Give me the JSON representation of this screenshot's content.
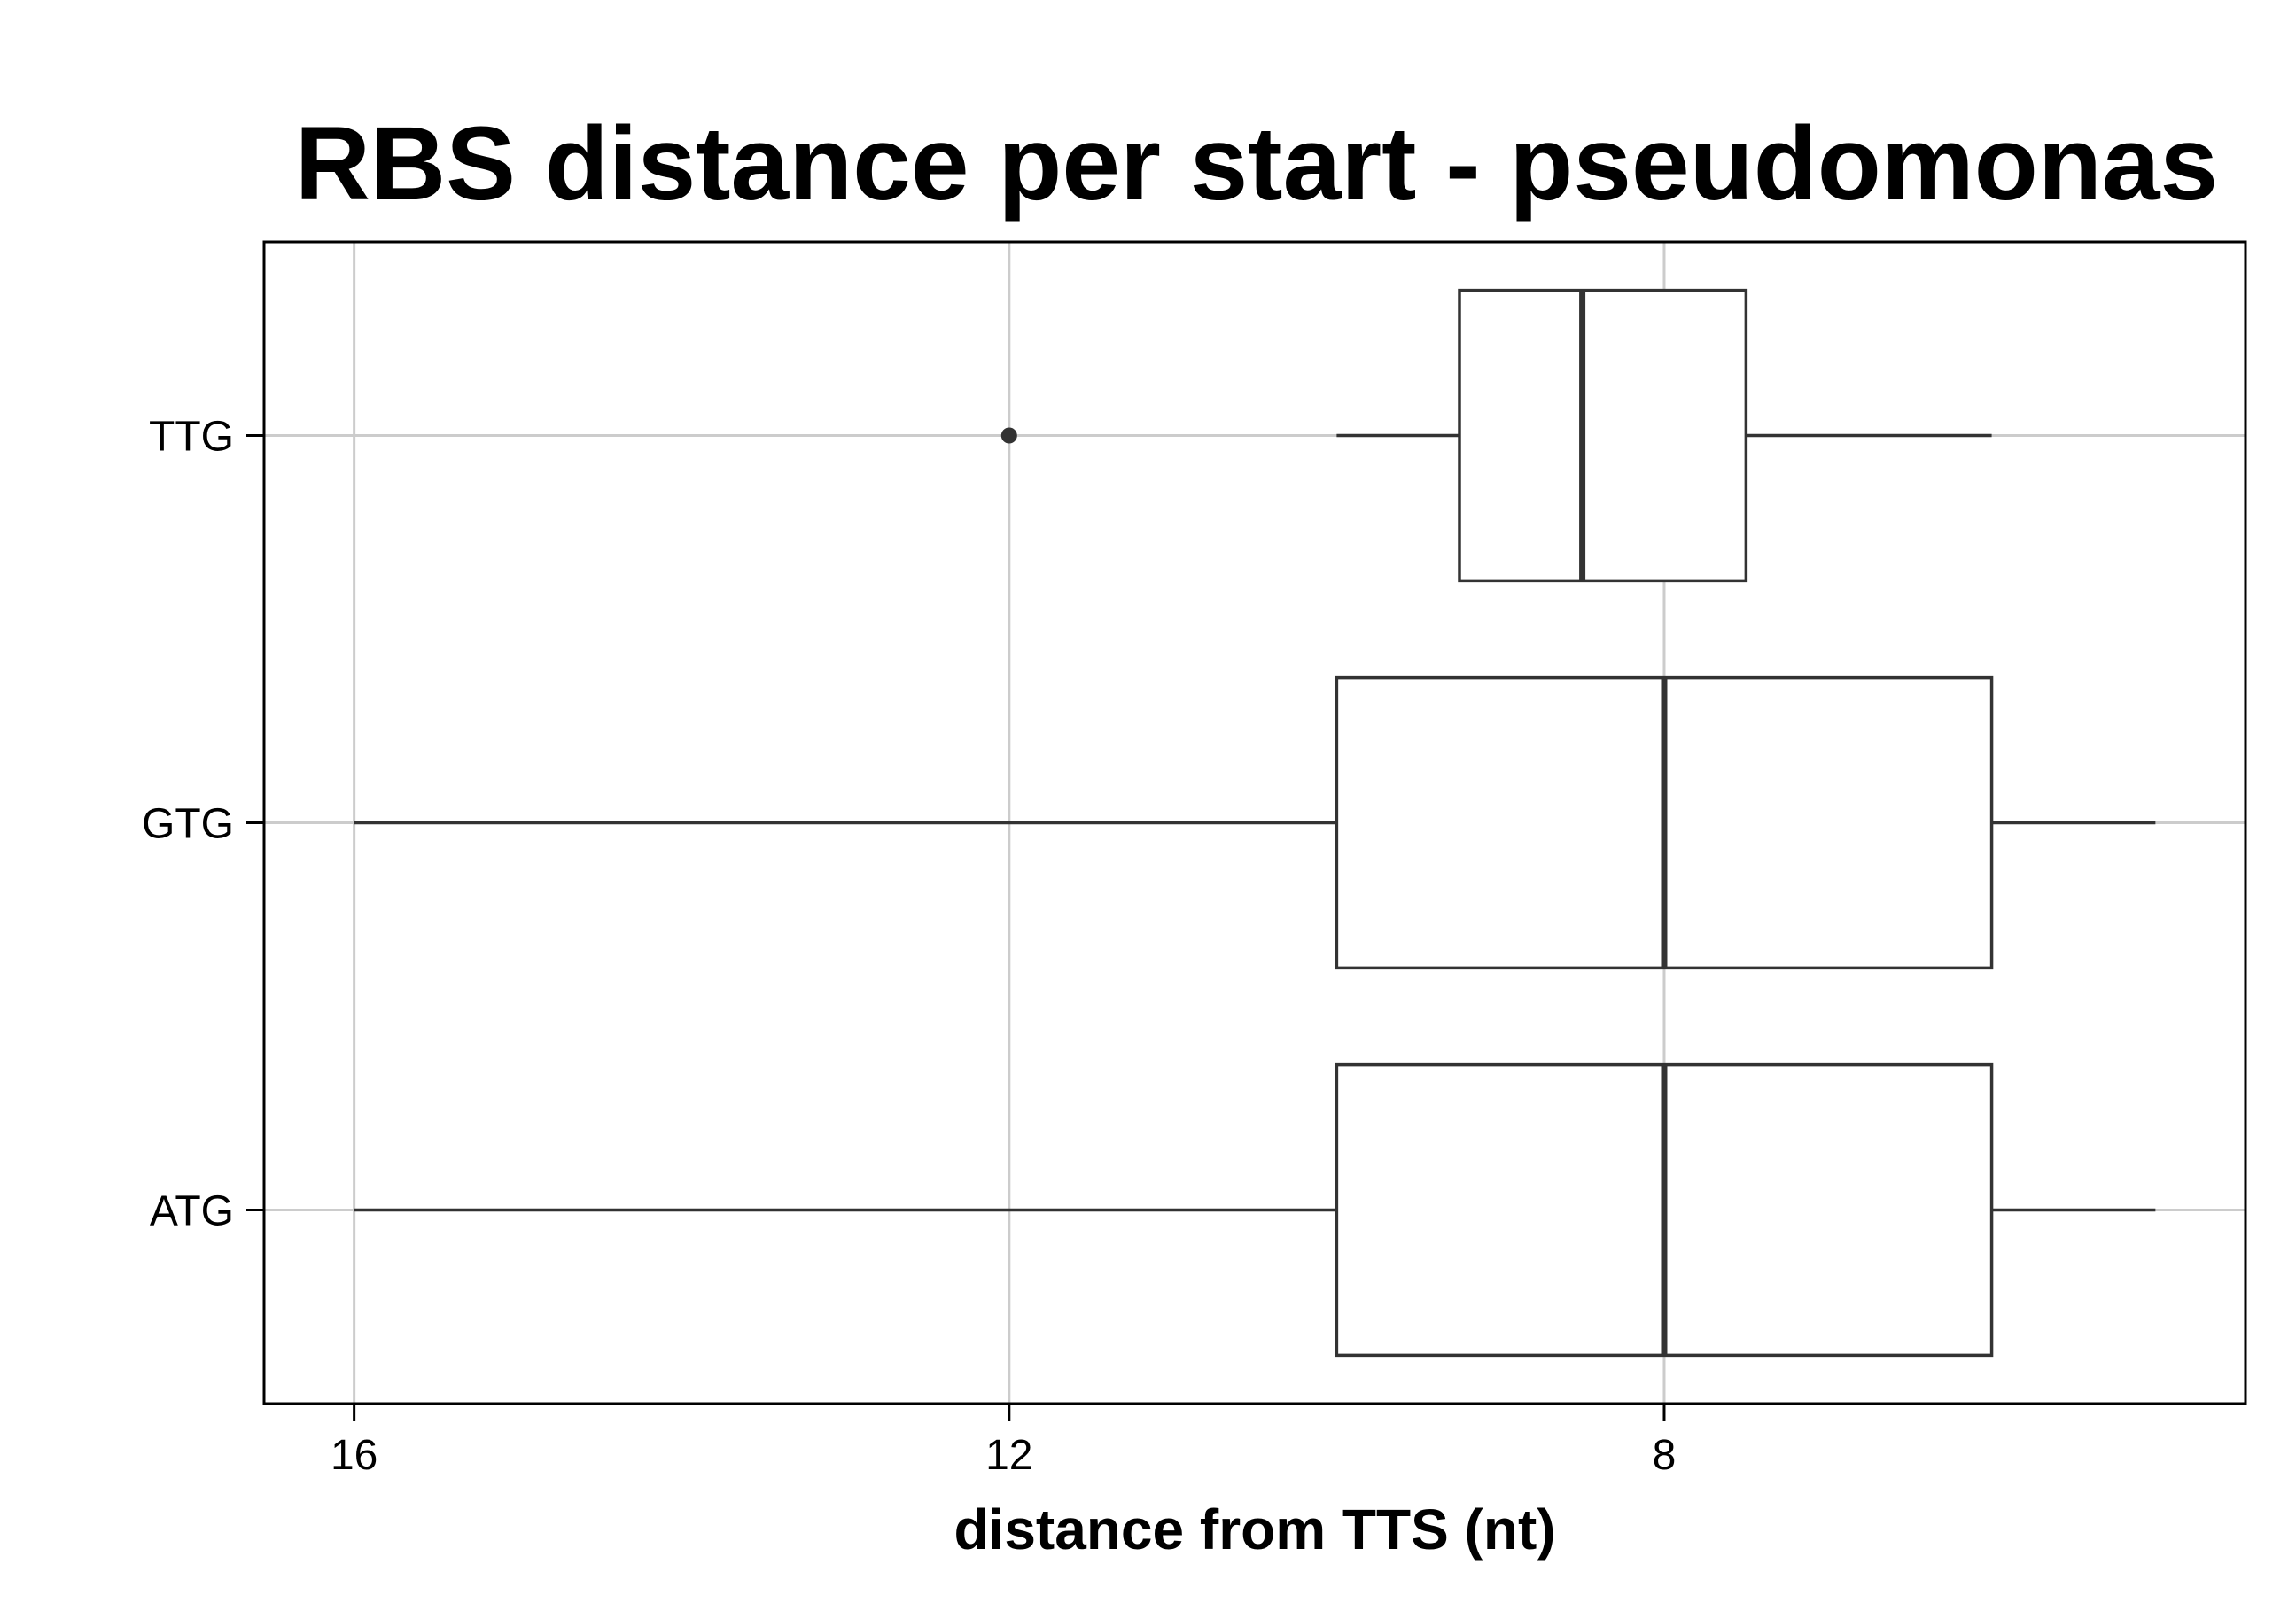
{
  "chart_data": {
    "type": "boxplot",
    "orientation": "horizontal",
    "title": "RBS distance per start - pseudomonas",
    "xlabel": "distance from TTS (nt)",
    "ylabel": "",
    "x_axis_reversed": true,
    "xlim": [
      16.55,
      4.45
    ],
    "x_ticks": [
      16,
      12,
      8
    ],
    "x_tick_labels": [
      "16",
      "12",
      "8"
    ],
    "categories": [
      "ATG",
      "GTG",
      "TTG"
    ],
    "boxes": [
      {
        "category": "ATG",
        "whisker_low": 5,
        "q1": 6,
        "median": 8,
        "q3": 10,
        "whisker_high": 16,
        "outliers": []
      },
      {
        "category": "GTG",
        "whisker_low": 5,
        "q1": 6,
        "median": 8,
        "q3": 10,
        "whisker_high": 16,
        "outliers": []
      },
      {
        "category": "TTG",
        "whisker_low": 6,
        "q1": 7.5,
        "median": 8.5,
        "q3": 9.25,
        "whisker_high": 10,
        "outliers": [
          12
        ]
      }
    ],
    "grid": true,
    "legend": "none",
    "colors": {
      "box_fill": "#ffffff",
      "box_stroke": "#333333",
      "grid": "#cccccc",
      "outlier": "#333333"
    }
  }
}
